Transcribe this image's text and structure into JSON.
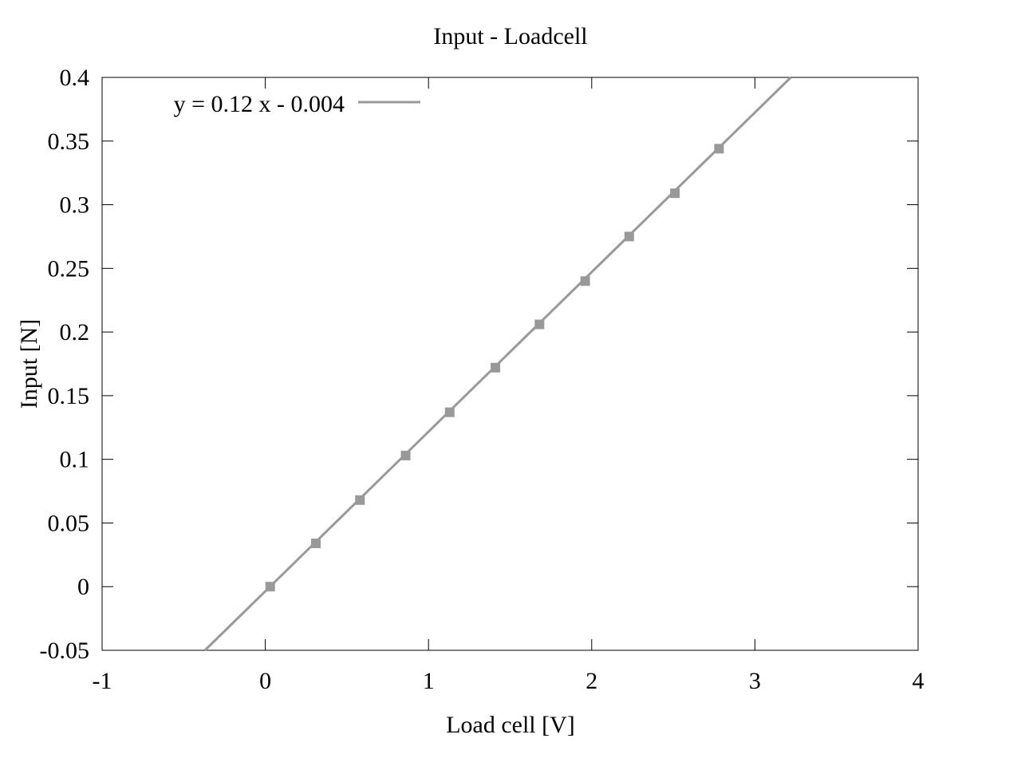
{
  "chart_data": {
    "type": "line",
    "title": "Input - Loadcell",
    "xlabel": "Load cell [V]",
    "ylabel": "Input [N]",
    "xlim": [
      -1,
      4
    ],
    "ylim": [
      -0.05,
      0.4
    ],
    "xticks": [
      "-1",
      "0",
      "1",
      "2",
      "3",
      "4"
    ],
    "yticks": [
      "-0.05",
      "0",
      "0.05",
      "0.1",
      "0.15",
      "0.2",
      "0.25",
      "0.3",
      "0.35",
      "0.4"
    ],
    "grid": false,
    "legend_position": "top-left",
    "series_color": "#999999",
    "series": [
      {
        "name": "y = 0.12 x - 0.004",
        "kind": "fit-line",
        "x": [
          -0.37,
          3.22
        ],
        "y": [
          -0.05,
          0.4
        ]
      },
      {
        "name": "",
        "kind": "points",
        "x": [
          0.03,
          0.31,
          0.58,
          0.86,
          1.13,
          1.41,
          1.68,
          1.96,
          2.23,
          2.51,
          2.78
        ],
        "y": [
          0.0,
          0.034,
          0.068,
          0.103,
          0.137,
          0.172,
          0.206,
          0.24,
          0.275,
          0.309,
          0.344
        ]
      }
    ]
  }
}
